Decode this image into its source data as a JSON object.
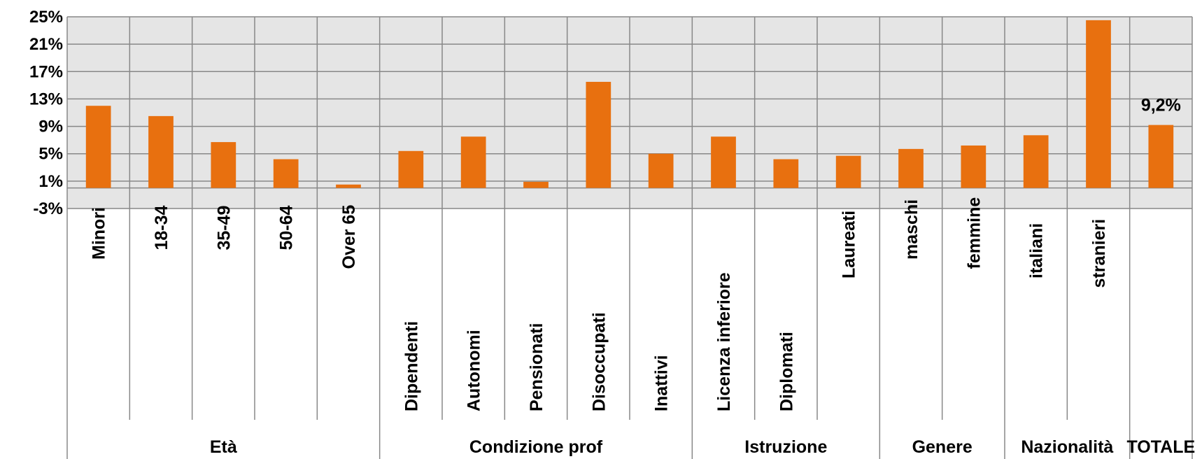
{
  "chart_data": {
    "type": "bar",
    "categories": [
      "Minori",
      "18-34",
      "35-49",
      "50-64",
      "Over 65",
      "Dipendenti",
      "Autonomi",
      "Pensionati",
      "Disoccupati",
      "Inattivi",
      "Licenza inferiore",
      "Diplomati",
      "Laureati",
      "maschi",
      "femmine",
      "italiani",
      "stranieri",
      "TOTALE"
    ],
    "groups": [
      {
        "label": "Età",
        "count": 5
      },
      {
        "label": "Condizione prof",
        "count": 5
      },
      {
        "label": "Istruzione",
        "count": 3
      },
      {
        "label": "Genere",
        "count": 2
      },
      {
        "label": "Nazionalità",
        "count": 2
      },
      {
        "label": "TOTALE",
        "count": 1,
        "no_category_label": true
      }
    ],
    "series": [
      {
        "values": [
          12.0,
          10.5,
          6.7,
          4.2,
          0.5,
          5.4,
          7.5,
          0.9,
          15.5,
          5.0,
          7.5,
          4.2,
          4.7,
          5.7,
          6.2,
          7.7,
          24.5,
          9.2
        ]
      }
    ],
    "data_labels": [
      {
        "index": 17,
        "text": "9,2%"
      }
    ],
    "ylim": [
      -3,
      25
    ],
    "y_ticks": [
      "25%",
      "21%",
      "17%",
      "13%",
      "9%",
      "5%",
      "1%",
      "-3%"
    ],
    "y_tick_values": [
      25,
      21,
      17,
      13,
      9,
      5,
      1,
      -3
    ],
    "grid": true,
    "legend": "none",
    "title": "",
    "xlabel": "",
    "ylabel": "",
    "colors": {
      "bar": "#E8700F",
      "plot_background": "#E5E5E5",
      "grid": "#888888"
    }
  }
}
